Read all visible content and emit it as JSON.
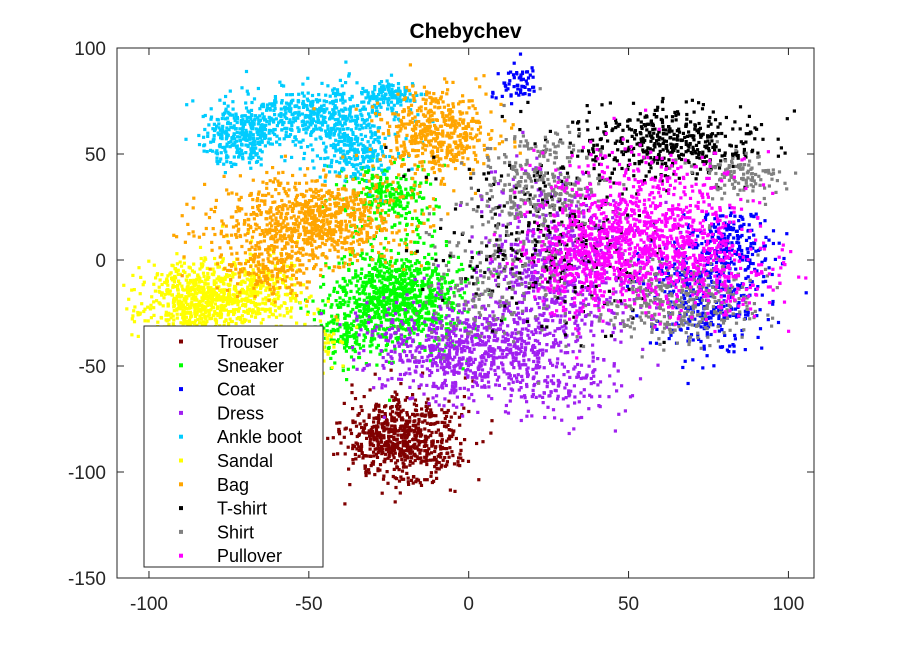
{
  "chart_data": {
    "type": "scatter",
    "title": "Chebychev",
    "xlabel": "",
    "ylabel": "",
    "xlim": [
      -110,
      108
    ],
    "ylim": [
      -150,
      100
    ],
    "xticks": [
      "-100",
      "-50",
      "0",
      "50",
      "100"
    ],
    "xtick_values": [
      -100,
      -50,
      0,
      50,
      100
    ],
    "yticks": [
      "100",
      "50",
      "0",
      "-50",
      "-100",
      "-150"
    ],
    "ytick_values": [
      100,
      50,
      0,
      -50,
      -100,
      -150
    ],
    "grid": false,
    "legend_position": "bottom-left",
    "series": [
      {
        "name": "Trouser",
        "color": "#800000",
        "clusters": [
          {
            "cx": -21,
            "cy": -85,
            "sx": 9,
            "sy": 10,
            "n": 700
          }
        ]
      },
      {
        "name": "Sneaker",
        "color": "#00ff00",
        "clusters": [
          {
            "cx": -22,
            "cy": -17,
            "sx": 10,
            "sy": 12,
            "n": 900
          },
          {
            "cx": -25,
            "cy": 30,
            "sx": 7,
            "sy": 8,
            "n": 250
          },
          {
            "cx": -38,
            "cy": -35,
            "sx": 6,
            "sy": 8,
            "n": 150
          }
        ]
      },
      {
        "name": "Coat",
        "color": "#0000ff",
        "clusters": [
          {
            "cx": 75,
            "cy": -15,
            "sx": 10,
            "sy": 14,
            "n": 450
          },
          {
            "cx": 82,
            "cy": 10,
            "sx": 6,
            "sy": 7,
            "n": 150
          },
          {
            "cx": 15,
            "cy": 82,
            "sx": 4,
            "sy": 4,
            "n": 60
          }
        ]
      },
      {
        "name": "Dress",
        "color": "#a020f0",
        "clusters": [
          {
            "cx": 0,
            "cy": -42,
            "sx": 15,
            "sy": 12,
            "n": 800
          },
          {
            "cx": 28,
            "cy": -5,
            "sx": 12,
            "sy": 22,
            "n": 600
          },
          {
            "cx": 30,
            "cy": -60,
            "sx": 10,
            "sy": 8,
            "n": 120
          }
        ]
      },
      {
        "name": "Ankle boot",
        "color": "#00ccff",
        "clusters": [
          {
            "cx": -48,
            "cy": 68,
            "sx": 12,
            "sy": 7,
            "n": 500
          },
          {
            "cx": -72,
            "cy": 58,
            "sx": 6,
            "sy": 7,
            "n": 300
          },
          {
            "cx": -35,
            "cy": 50,
            "sx": 6,
            "sy": 6,
            "n": 200
          },
          {
            "cx": -25,
            "cy": 78,
            "sx": 5,
            "sy": 4,
            "n": 120
          }
        ]
      },
      {
        "name": "Sandal",
        "color": "#ffff00",
        "clusters": [
          {
            "cx": -85,
            "cy": -20,
            "sx": 9,
            "sy": 10,
            "n": 700
          },
          {
            "cx": -68,
            "cy": -15,
            "sx": 8,
            "sy": 9,
            "n": 300
          },
          {
            "cx": -50,
            "cy": -40,
            "sx": 5,
            "sy": 7,
            "n": 120
          }
        ]
      },
      {
        "name": "Bag",
        "color": "#ffa500",
        "clusters": [
          {
            "cx": -50,
            "cy": 18,
            "sx": 14,
            "sy": 10,
            "n": 900
          },
          {
            "cx": -10,
            "cy": 60,
            "sx": 9,
            "sy": 10,
            "n": 500
          },
          {
            "cx": -62,
            "cy": -5,
            "sx": 7,
            "sy": 6,
            "n": 150
          }
        ]
      },
      {
        "name": "T-shirt",
        "color": "#000000",
        "clusters": [
          {
            "cx": 62,
            "cy": 55,
            "sx": 14,
            "sy": 8,
            "n": 450
          },
          {
            "cx": 25,
            "cy": 10,
            "sx": 18,
            "sy": 22,
            "n": 300
          }
        ]
      },
      {
        "name": "Shirt",
        "color": "#808080",
        "clusters": [
          {
            "cx": 65,
            "cy": -18,
            "sx": 12,
            "sy": 10,
            "n": 400
          },
          {
            "cx": 22,
            "cy": 35,
            "sx": 10,
            "sy": 12,
            "n": 300
          },
          {
            "cx": 85,
            "cy": 40,
            "sx": 7,
            "sy": 5,
            "n": 120
          },
          {
            "cx": 10,
            "cy": -10,
            "sx": 12,
            "sy": 15,
            "n": 200
          }
        ]
      },
      {
        "name": "Pullover",
        "color": "#ff00ff",
        "clusters": [
          {
            "cx": 55,
            "cy": 15,
            "sx": 14,
            "sy": 18,
            "n": 900
          },
          {
            "cx": 35,
            "cy": 0,
            "sx": 10,
            "sy": 12,
            "n": 350
          },
          {
            "cx": 78,
            "cy": -5,
            "sx": 10,
            "sy": 12,
            "n": 250
          }
        ]
      }
    ]
  }
}
